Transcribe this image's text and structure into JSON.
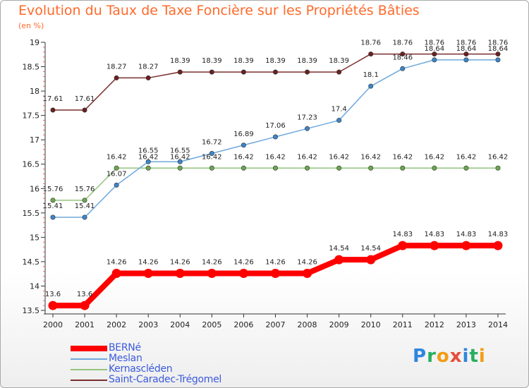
{
  "title": "Evolution du Taux de Taxe Foncière sur les Propriétés Bâties",
  "unit_label": "(en %)",
  "logo": {
    "text": "Proxiti",
    "letters": [
      "P",
      "r",
      "o",
      "x",
      "i",
      "t",
      "i"
    ],
    "colors": [
      "#2e86de",
      "#27ae60",
      "#f39c12",
      "#e74c3c",
      "#2e86de",
      "#27ae60",
      "#f39c12"
    ]
  },
  "chart_data": {
    "type": "line",
    "title": "Evolution du Taux de Taxe Foncière sur les Propriétés Bâties",
    "ylabel": "(en %)",
    "x": [
      "2000",
      "2001",
      "2002",
      "2003",
      "2004",
      "2005",
      "2006",
      "2007",
      "2008",
      "2009",
      "2010",
      "2011",
      "2012",
      "2013",
      "2014"
    ],
    "ylim": [
      13.5,
      19
    ],
    "yticks": [
      "13.5",
      "14",
      "14.5",
      "15",
      "15.5",
      "16",
      "16.5",
      "17",
      "17.5",
      "18",
      "18.5",
      "19"
    ],
    "grid": false,
    "legend_position": "bottom",
    "series": [
      {
        "name": "BERNé",
        "color": "#ff0000",
        "width": 8,
        "values": [
          13.6,
          13.6,
          14.26,
          14.26,
          14.26,
          14.26,
          14.26,
          14.26,
          14.26,
          14.54,
          14.54,
          14.83,
          14.83,
          14.83,
          14.83
        ],
        "labels": [
          "13.6",
          "13.6",
          "14.26",
          "14.26",
          "14.26",
          "14.26",
          "14.26",
          "14.26",
          "14.26",
          "14.54",
          "14.54",
          "14.83",
          "14.83",
          "14.83",
          "14.83"
        ]
      },
      {
        "name": "Meslan",
        "color": "#6fa8dc",
        "marker": "#3d85c6",
        "width": 1.5,
        "values": [
          15.41,
          15.41,
          16.07,
          16.55,
          16.55,
          16.72,
          16.89,
          17.06,
          17.23,
          17.4,
          18.1,
          18.46,
          18.64,
          18.64,
          18.64
        ],
        "labels": [
          "15.41",
          "15.41",
          "16.07",
          "16.55",
          "16.55",
          "16.72",
          "16.89",
          "17.06",
          "17.23",
          "17.4",
          "18.1",
          "18.46",
          "18.64",
          "18.64",
          "18.64"
        ]
      },
      {
        "name": "Kernascléden",
        "color": "#93c47d",
        "marker": "#6aa84f",
        "width": 1.5,
        "values": [
          15.76,
          15.76,
          16.42,
          16.42,
          16.42,
          16.42,
          16.42,
          16.42,
          16.42,
          16.42,
          16.42,
          16.42,
          16.42,
          16.42,
          16.42
        ],
        "labels": [
          "15.76",
          "15.76",
          "16.42",
          "16.42",
          "16.42",
          "16.42",
          "16.42",
          "16.42",
          "16.42",
          "16.42",
          "16.42",
          "16.42",
          "16.42",
          "16.42",
          "16.42"
        ]
      },
      {
        "name": "Saint-Caradec-Trégomel",
        "color": "#7a2e2e",
        "marker": "#6b2020",
        "width": 1.5,
        "values": [
          17.61,
          17.61,
          18.27,
          18.27,
          18.39,
          18.39,
          18.39,
          18.39,
          18.39,
          18.39,
          18.76,
          18.76,
          18.76,
          18.76,
          18.76
        ],
        "labels": [
          "17.61",
          "17.61",
          "18.27",
          "18.27",
          "18.39",
          "18.39",
          "18.39",
          "18.39",
          "18.39",
          "18.39",
          "18.76",
          "18.76",
          "18.76",
          "18.76",
          "18.76"
        ]
      }
    ]
  }
}
